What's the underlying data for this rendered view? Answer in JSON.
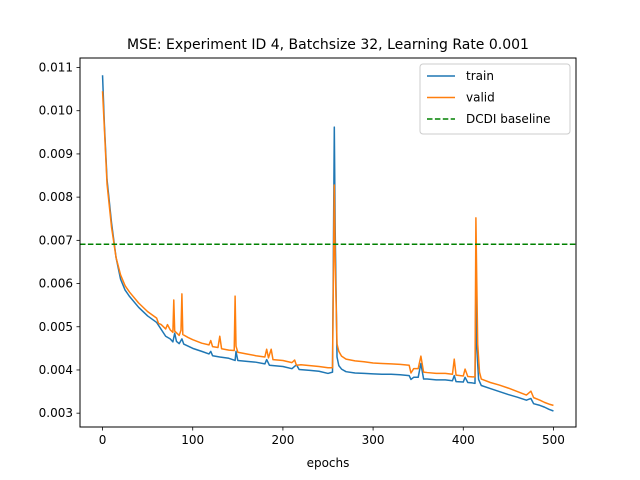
{
  "chart_data": {
    "type": "line",
    "title": "MSE: Experiment ID 4, Batchsize 32, Learning Rate 0.001",
    "xlabel": "epochs",
    "ylabel": "",
    "xlim": [
      -25,
      525
    ],
    "ylim": [
      0.00268,
      0.01122
    ],
    "x_ticks": [
      0,
      100,
      200,
      300,
      400,
      500
    ],
    "y_ticks": [
      0.003,
      0.004,
      0.005,
      0.006,
      0.007,
      0.008,
      0.009,
      0.01,
      0.011
    ],
    "y_tick_labels": [
      "0.003",
      "0.004",
      "0.005",
      "0.006",
      "0.007",
      "0.008",
      "0.009",
      "0.010",
      "0.011"
    ],
    "grid": false,
    "legend_position": "top-right",
    "series": [
      {
        "name": "train",
        "color": "#1f77b4",
        "style": "solid",
        "points": [
          [
            0,
            0.01082
          ],
          [
            2,
            0.0097
          ],
          [
            5,
            0.0084
          ],
          [
            10,
            0.0074
          ],
          [
            15,
            0.0066
          ],
          [
            20,
            0.0061
          ],
          [
            25,
            0.00585
          ],
          [
            30,
            0.0057
          ],
          [
            40,
            0.00545
          ],
          [
            50,
            0.00525
          ],
          [
            60,
            0.0051
          ],
          [
            70,
            0.00478
          ],
          [
            75,
            0.00472
          ],
          [
            78,
            0.00465
          ],
          [
            80,
            0.00485
          ],
          [
            82,
            0.00466
          ],
          [
            85,
            0.00461
          ],
          [
            88,
            0.00472
          ],
          [
            90,
            0.0046
          ],
          [
            100,
            0.0045
          ],
          [
            110,
            0.00443
          ],
          [
            118,
            0.00437
          ],
          [
            120,
            0.00443
          ],
          [
            122,
            0.00433
          ],
          [
            130,
            0.0043
          ],
          [
            140,
            0.00427
          ],
          [
            147,
            0.00422
          ],
          [
            148,
            0.00443
          ],
          [
            150,
            0.00422
          ],
          [
            160,
            0.0042
          ],
          [
            170,
            0.00418
          ],
          [
            180,
            0.00414
          ],
          [
            182,
            0.00424
          ],
          [
            185,
            0.00411
          ],
          [
            200,
            0.00408
          ],
          [
            210,
            0.00403
          ],
          [
            215,
            0.00412
          ],
          [
            218,
            0.00401
          ],
          [
            230,
            0.00399
          ],
          [
            240,
            0.00397
          ],
          [
            250,
            0.00392
          ],
          [
            255,
            0.00395
          ],
          [
            257,
            0.00962
          ],
          [
            258,
            0.0072
          ],
          [
            260,
            0.0043
          ],
          [
            262,
            0.0041
          ],
          [
            265,
            0.00402
          ],
          [
            270,
            0.00396
          ],
          [
            280,
            0.00393
          ],
          [
            290,
            0.00392
          ],
          [
            300,
            0.00391
          ],
          [
            310,
            0.0039
          ],
          [
            320,
            0.0039
          ],
          [
            330,
            0.00389
          ],
          [
            340,
            0.00387
          ],
          [
            342,
            0.00378
          ],
          [
            345,
            0.00383
          ],
          [
            350,
            0.00383
          ],
          [
            353,
            0.00415
          ],
          [
            356,
            0.00379
          ],
          [
            360,
            0.00379
          ],
          [
            370,
            0.00377
          ],
          [
            380,
            0.00377
          ],
          [
            388,
            0.00375
          ],
          [
            390,
            0.00387
          ],
          [
            392,
            0.00373
          ],
          [
            400,
            0.00372
          ],
          [
            402,
            0.00383
          ],
          [
            405,
            0.00371
          ],
          [
            410,
            0.0037
          ],
          [
            413,
            0.00369
          ],
          [
            414,
            0.00592
          ],
          [
            415,
            0.0045
          ],
          [
            417,
            0.00378
          ],
          [
            420,
            0.00364
          ],
          [
            430,
            0.00357
          ],
          [
            440,
            0.0035
          ],
          [
            450,
            0.00343
          ],
          [
            460,
            0.00337
          ],
          [
            470,
            0.0033
          ],
          [
            475,
            0.00334
          ],
          [
            478,
            0.00322
          ],
          [
            485,
            0.00318
          ],
          [
            490,
            0.00314
          ],
          [
            495,
            0.00309
          ],
          [
            500,
            0.00305
          ]
        ]
      },
      {
        "name": "valid",
        "color": "#ff7f0e",
        "style": "solid",
        "points": [
          [
            0,
            0.01045
          ],
          [
            2,
            0.0096
          ],
          [
            5,
            0.0083
          ],
          [
            10,
            0.0073
          ],
          [
            15,
            0.0066
          ],
          [
            20,
            0.0062
          ],
          [
            25,
            0.00595
          ],
          [
            30,
            0.0058
          ],
          [
            40,
            0.00555
          ],
          [
            50,
            0.00535
          ],
          [
            60,
            0.0052
          ],
          [
            62,
            0.00508
          ],
          [
            65,
            0.00505
          ],
          [
            70,
            0.00495
          ],
          [
            72,
            0.00505
          ],
          [
            75,
            0.00493
          ],
          [
            78,
            0.00487
          ],
          [
            79,
            0.00562
          ],
          [
            80,
            0.0049
          ],
          [
            85,
            0.0048
          ],
          [
            87,
            0.00492
          ],
          [
            88,
            0.00576
          ],
          [
            89,
            0.00482
          ],
          [
            95,
            0.00475
          ],
          [
            100,
            0.0047
          ],
          [
            110,
            0.00462
          ],
          [
            118,
            0.00458
          ],
          [
            120,
            0.00468
          ],
          [
            122,
            0.00454
          ],
          [
            128,
            0.00452
          ],
          [
            130,
            0.00478
          ],
          [
            132,
            0.00449
          ],
          [
            140,
            0.00446
          ],
          [
            146,
            0.00445
          ],
          [
            147,
            0.00571
          ],
          [
            148,
            0.00455
          ],
          [
            150,
            0.00441
          ],
          [
            160,
            0.00437
          ],
          [
            170,
            0.00433
          ],
          [
            180,
            0.0043
          ],
          [
            182,
            0.00448
          ],
          [
            184,
            0.00428
          ],
          [
            187,
            0.00448
          ],
          [
            189,
            0.00424
          ],
          [
            200,
            0.00422
          ],
          [
            210,
            0.00417
          ],
          [
            213,
            0.00423
          ],
          [
            215,
            0.00411
          ],
          [
            220,
            0.00412
          ],
          [
            230,
            0.0041
          ],
          [
            240,
            0.00408
          ],
          [
            250,
            0.00405
          ],
          [
            255,
            0.00405
          ],
          [
            257,
            0.00828
          ],
          [
            258,
            0.0065
          ],
          [
            260,
            0.0046
          ],
          [
            262,
            0.00443
          ],
          [
            265,
            0.00432
          ],
          [
            270,
            0.00425
          ],
          [
            280,
            0.00421
          ],
          [
            290,
            0.00419
          ],
          [
            300,
            0.00416
          ],
          [
            310,
            0.00415
          ],
          [
            320,
            0.00414
          ],
          [
            330,
            0.00413
          ],
          [
            340,
            0.00411
          ],
          [
            342,
            0.00393
          ],
          [
            345,
            0.00403
          ],
          [
            350,
            0.00403
          ],
          [
            353,
            0.00432
          ],
          [
            356,
            0.00395
          ],
          [
            360,
            0.00394
          ],
          [
            370,
            0.00392
          ],
          [
            380,
            0.00392
          ],
          [
            388,
            0.0039
          ],
          [
            390,
            0.00425
          ],
          [
            392,
            0.00388
          ],
          [
            400,
            0.00386
          ],
          [
            402,
            0.00402
          ],
          [
            405,
            0.00385
          ],
          [
            410,
            0.00384
          ],
          [
            413,
            0.00384
          ],
          [
            414,
            0.00752
          ],
          [
            415,
            0.006
          ],
          [
            416,
            0.0046
          ],
          [
            418,
            0.00395
          ],
          [
            420,
            0.00379
          ],
          [
            430,
            0.00371
          ],
          [
            440,
            0.00365
          ],
          [
            450,
            0.00358
          ],
          [
            460,
            0.0035
          ],
          [
            470,
            0.00342
          ],
          [
            475,
            0.00351
          ],
          [
            478,
            0.00336
          ],
          [
            485,
            0.0033
          ],
          [
            490,
            0.00325
          ],
          [
            495,
            0.00321
          ],
          [
            500,
            0.00318
          ]
        ]
      },
      {
        "name": "DCDI baseline",
        "color": "#008000",
        "style": "dashed",
        "y": 0.00691
      }
    ]
  }
}
